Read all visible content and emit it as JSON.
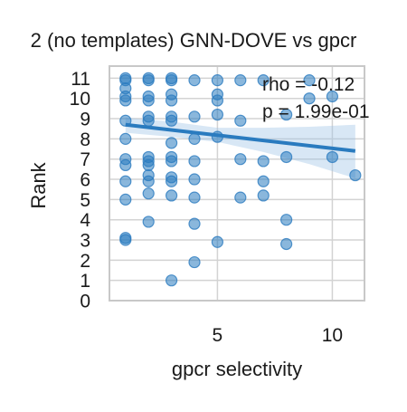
{
  "chart_data": {
    "type": "scatter",
    "title": "2 (no templates) GNN-DOVE vs gpcr",
    "xlabel": "gpcr selectivity",
    "ylabel": "Rank",
    "xlim": [
      0.3,
      11.4
    ],
    "ylim": [
      0,
      11.6
    ],
    "xticks": [
      5,
      10
    ],
    "yticks": [
      0,
      1,
      2,
      3,
      4,
      5,
      6,
      7,
      8,
      9,
      10,
      11
    ],
    "grid": true,
    "legend": "none",
    "point_color": "#2a7bbf",
    "line_color": "#2a7bbf",
    "band_color": "#9ec3e6",
    "annotations": [
      "rho = -0.12",
      "p = 1.99e-01"
    ],
    "regression": {
      "x": [
        1,
        11
      ],
      "y": [
        8.7,
        7.4
      ]
    },
    "band": {
      "x": [
        1,
        3,
        5,
        7,
        9,
        11
      ],
      "lower": [
        8.3,
        8.1,
        7.85,
        7.35,
        6.75,
        6.05
      ],
      "upper": [
        9.05,
        8.85,
        8.55,
        8.55,
        8.6,
        8.7
      ]
    },
    "points": [
      {
        "x": 1,
        "y": 11
      },
      {
        "x": 1,
        "y": 10.9
      },
      {
        "x": 1,
        "y": 10.5
      },
      {
        "x": 1,
        "y": 10.1
      },
      {
        "x": 1,
        "y": 9.9
      },
      {
        "x": 1,
        "y": 8.9
      },
      {
        "x": 1,
        "y": 8.0
      },
      {
        "x": 1,
        "y": 7.0
      },
      {
        "x": 1,
        "y": 6.7
      },
      {
        "x": 1,
        "y": 5.9
      },
      {
        "x": 1,
        "y": 5.0
      },
      {
        "x": 1,
        "y": 3.1
      },
      {
        "x": 1,
        "y": 3.0
      },
      {
        "x": 2,
        "y": 11
      },
      {
        "x": 2,
        "y": 10.9
      },
      {
        "x": 2,
        "y": 10.1
      },
      {
        "x": 2,
        "y": 9.9
      },
      {
        "x": 2,
        "y": 9.1
      },
      {
        "x": 2,
        "y": 8.9
      },
      {
        "x": 2,
        "y": 7.1
      },
      {
        "x": 2,
        "y": 6.9
      },
      {
        "x": 2,
        "y": 6.7
      },
      {
        "x": 2,
        "y": 6.2
      },
      {
        "x": 2,
        "y": 5.9
      },
      {
        "x": 2,
        "y": 5.3
      },
      {
        "x": 2,
        "y": 3.9
      },
      {
        "x": 3,
        "y": 11
      },
      {
        "x": 3,
        "y": 10.9
      },
      {
        "x": 3,
        "y": 10.2
      },
      {
        "x": 3,
        "y": 9.9
      },
      {
        "x": 3,
        "y": 9.1
      },
      {
        "x": 3,
        "y": 8.9
      },
      {
        "x": 3,
        "y": 7.8
      },
      {
        "x": 3,
        "y": 7.1
      },
      {
        "x": 3,
        "y": 6.9
      },
      {
        "x": 3,
        "y": 6.1
      },
      {
        "x": 3,
        "y": 5.9
      },
      {
        "x": 3,
        "y": 5.2
      },
      {
        "x": 3,
        "y": 1.0
      },
      {
        "x": 4,
        "y": 10.9
      },
      {
        "x": 4,
        "y": 9.1
      },
      {
        "x": 4,
        "y": 8.0
      },
      {
        "x": 4,
        "y": 6.9
      },
      {
        "x": 4,
        "y": 6.0
      },
      {
        "x": 4,
        "y": 5.1
      },
      {
        "x": 4,
        "y": 3.8
      },
      {
        "x": 4,
        "y": 1.9
      },
      {
        "x": 5,
        "y": 10.9
      },
      {
        "x": 5,
        "y": 10.2
      },
      {
        "x": 5,
        "y": 9.9
      },
      {
        "x": 5,
        "y": 9.2
      },
      {
        "x": 5,
        "y": 8.1
      },
      {
        "x": 5,
        "y": 2.9
      },
      {
        "x": 6,
        "y": 10.9
      },
      {
        "x": 6,
        "y": 8.9
      },
      {
        "x": 6,
        "y": 7.0
      },
      {
        "x": 6,
        "y": 5.1
      },
      {
        "x": 7,
        "y": 10.9
      },
      {
        "x": 7,
        "y": 6.9
      },
      {
        "x": 7,
        "y": 5.9
      },
      {
        "x": 7,
        "y": 5.2
      },
      {
        "x": 8,
        "y": 9.2
      },
      {
        "x": 8,
        "y": 7.1
      },
      {
        "x": 8,
        "y": 4.0
      },
      {
        "x": 8,
        "y": 2.8
      },
      {
        "x": 9,
        "y": 10.9
      },
      {
        "x": 9,
        "y": 10.0
      },
      {
        "x": 10,
        "y": 10.1
      },
      {
        "x": 10,
        "y": 7.1
      },
      {
        "x": 11,
        "y": 6.2
      }
    ]
  }
}
